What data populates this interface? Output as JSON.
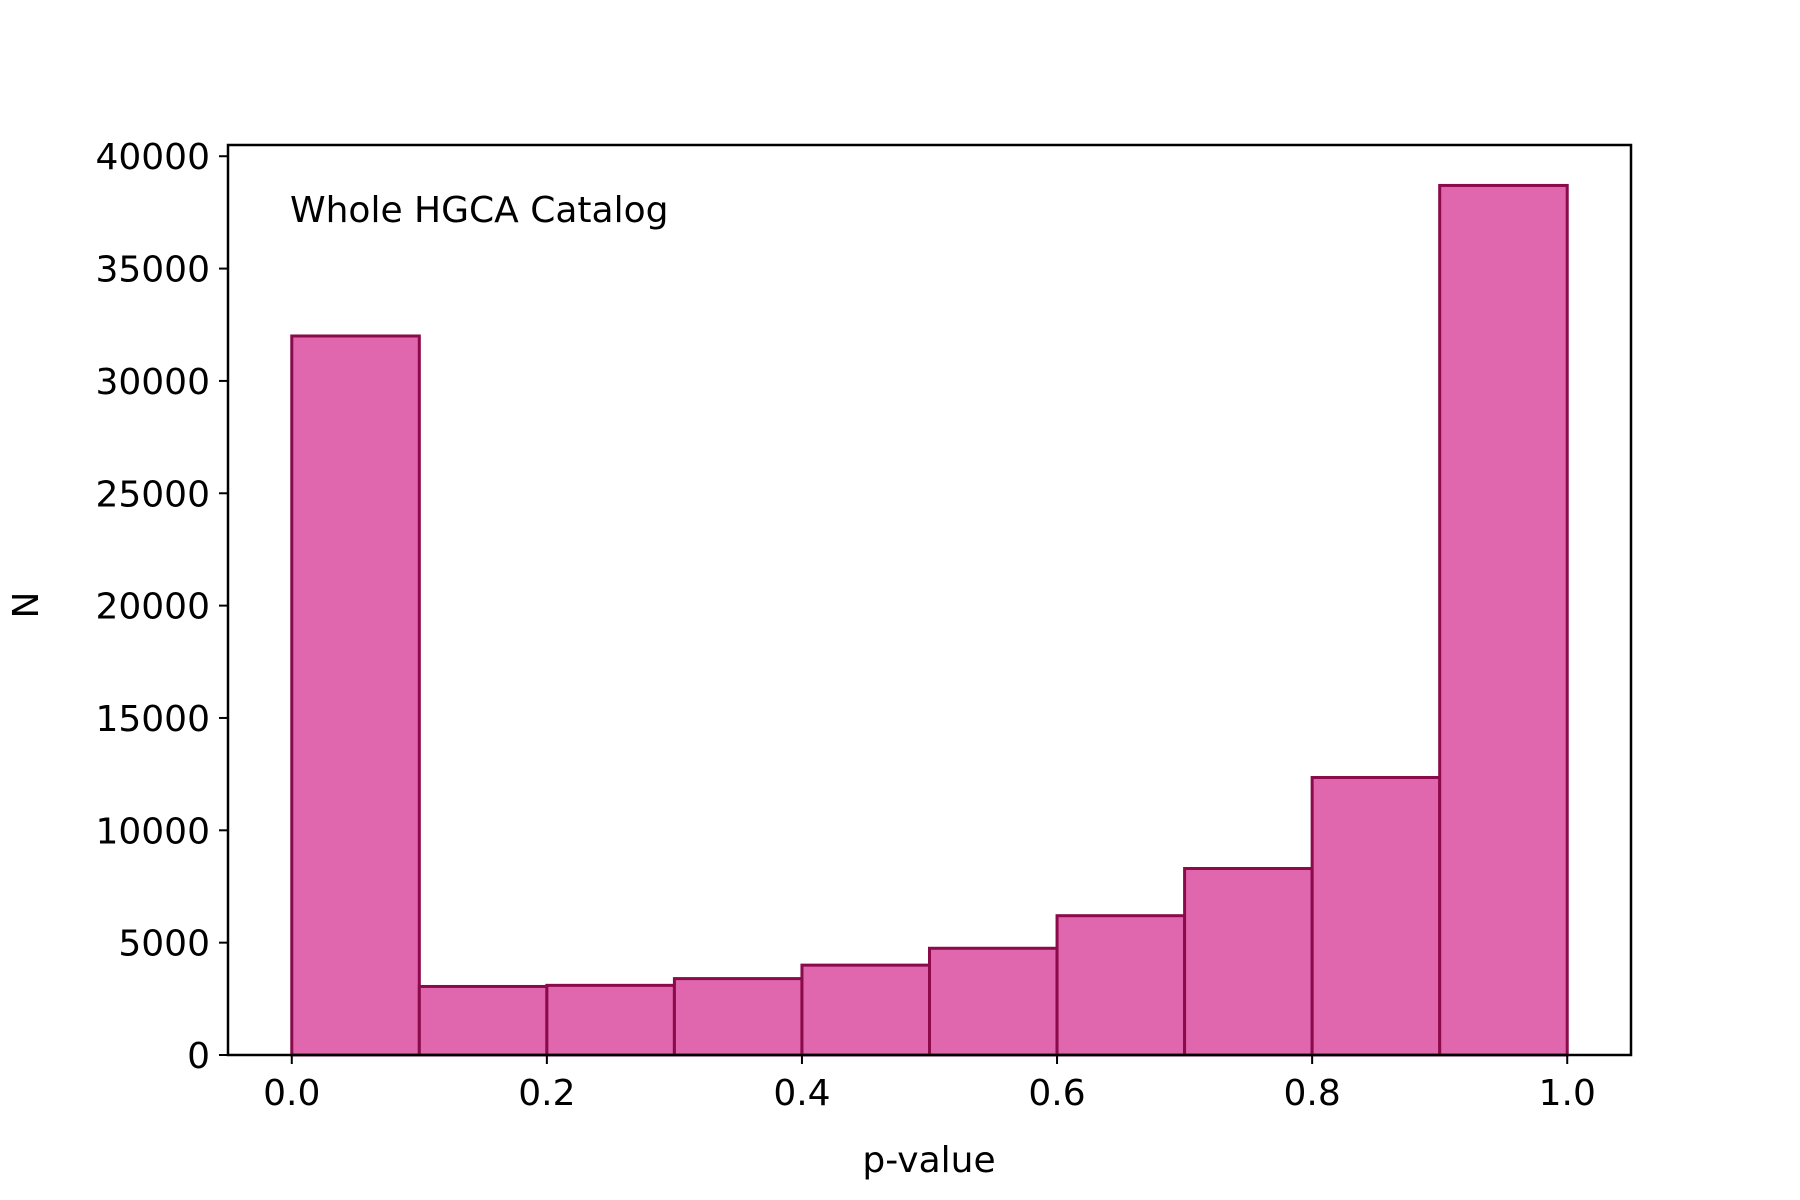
{
  "chart_data": {
    "type": "bar",
    "subtype": "histogram",
    "annotation": "Whole HGCA Catalog",
    "xlabel": "p-value",
    "ylabel": "N",
    "xlim": [
      -0.05,
      1.05
    ],
    "ylim": [
      0,
      40500
    ],
    "x_ticks": [
      0.0,
      0.2,
      0.4,
      0.6,
      0.8,
      1.0
    ],
    "x_tick_labels": [
      "0.0",
      "0.2",
      "0.4",
      "0.6",
      "0.8",
      "1.0"
    ],
    "y_ticks": [
      0,
      5000,
      10000,
      15000,
      20000,
      25000,
      30000,
      35000,
      40000
    ],
    "y_tick_labels": [
      "0",
      "5000",
      "10000",
      "15000",
      "20000",
      "25000",
      "30000",
      "35000",
      "40000"
    ],
    "bin_edges": [
      0.0,
      0.1,
      0.2,
      0.3,
      0.4,
      0.5,
      0.6,
      0.7,
      0.8,
      0.9,
      1.0
    ],
    "values": [
      32000,
      3050,
      3100,
      3400,
      4000,
      4750,
      6200,
      8300,
      12350,
      38700
    ],
    "grid": false,
    "colors": {
      "fill": "#e066ae",
      "edge": "#8b0a4a",
      "axis": "#000000"
    }
  }
}
